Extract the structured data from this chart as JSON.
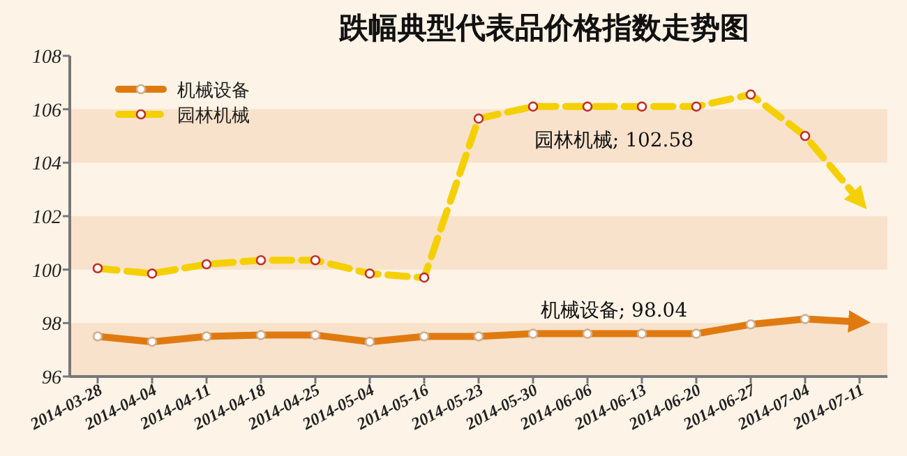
{
  "chart_data": {
    "type": "line",
    "title": "跌幅典型代表品价格指数走势图",
    "categories": [
      "2014-03-28",
      "2014-04-04",
      "2014-04-11",
      "2014-04-18",
      "2014-04-25",
      "2014-05-04",
      "2014-05-16",
      "2014-05-23",
      "2014-05-30",
      "2014-06-06",
      "2014-06-13",
      "2014-06-20",
      "2014-06-27",
      "2014-07-04",
      "2014-07-11"
    ],
    "series": [
      {
        "name": "机械设备",
        "color": "#e07a10",
        "line_style": "solid",
        "values": [
          97.5,
          97.3,
          97.5,
          97.55,
          97.55,
          97.3,
          97.5,
          97.5,
          97.6,
          97.6,
          97.6,
          97.6,
          97.95,
          98.15,
          98.04
        ]
      },
      {
        "name": "园林机械",
        "color": "#f5d000",
        "line_style": "dashed",
        "values": [
          100.05,
          99.85,
          100.2,
          100.35,
          100.35,
          99.85,
          99.7,
          105.65,
          106.1,
          106.1,
          106.1,
          106.1,
          106.55,
          105.0,
          102.58
        ]
      }
    ],
    "annotations": [
      "机械设备; 98.04",
      "园林机械; 102.58"
    ],
    "ylim": [
      96,
      108
    ],
    "yticks": [
      96,
      98,
      100,
      102,
      104,
      106,
      108
    ],
    "bands": [
      {
        "axis": "y",
        "from": 96,
        "to": 98,
        "color": "#f8e2cc"
      },
      {
        "axis": "y",
        "from": 100,
        "to": 102,
        "color": "#f8e2cc"
      },
      {
        "axis": "y",
        "from": 104,
        "to": 106,
        "color": "#f8e2cc"
      }
    ],
    "legend": "top left",
    "marker": "circle"
  }
}
